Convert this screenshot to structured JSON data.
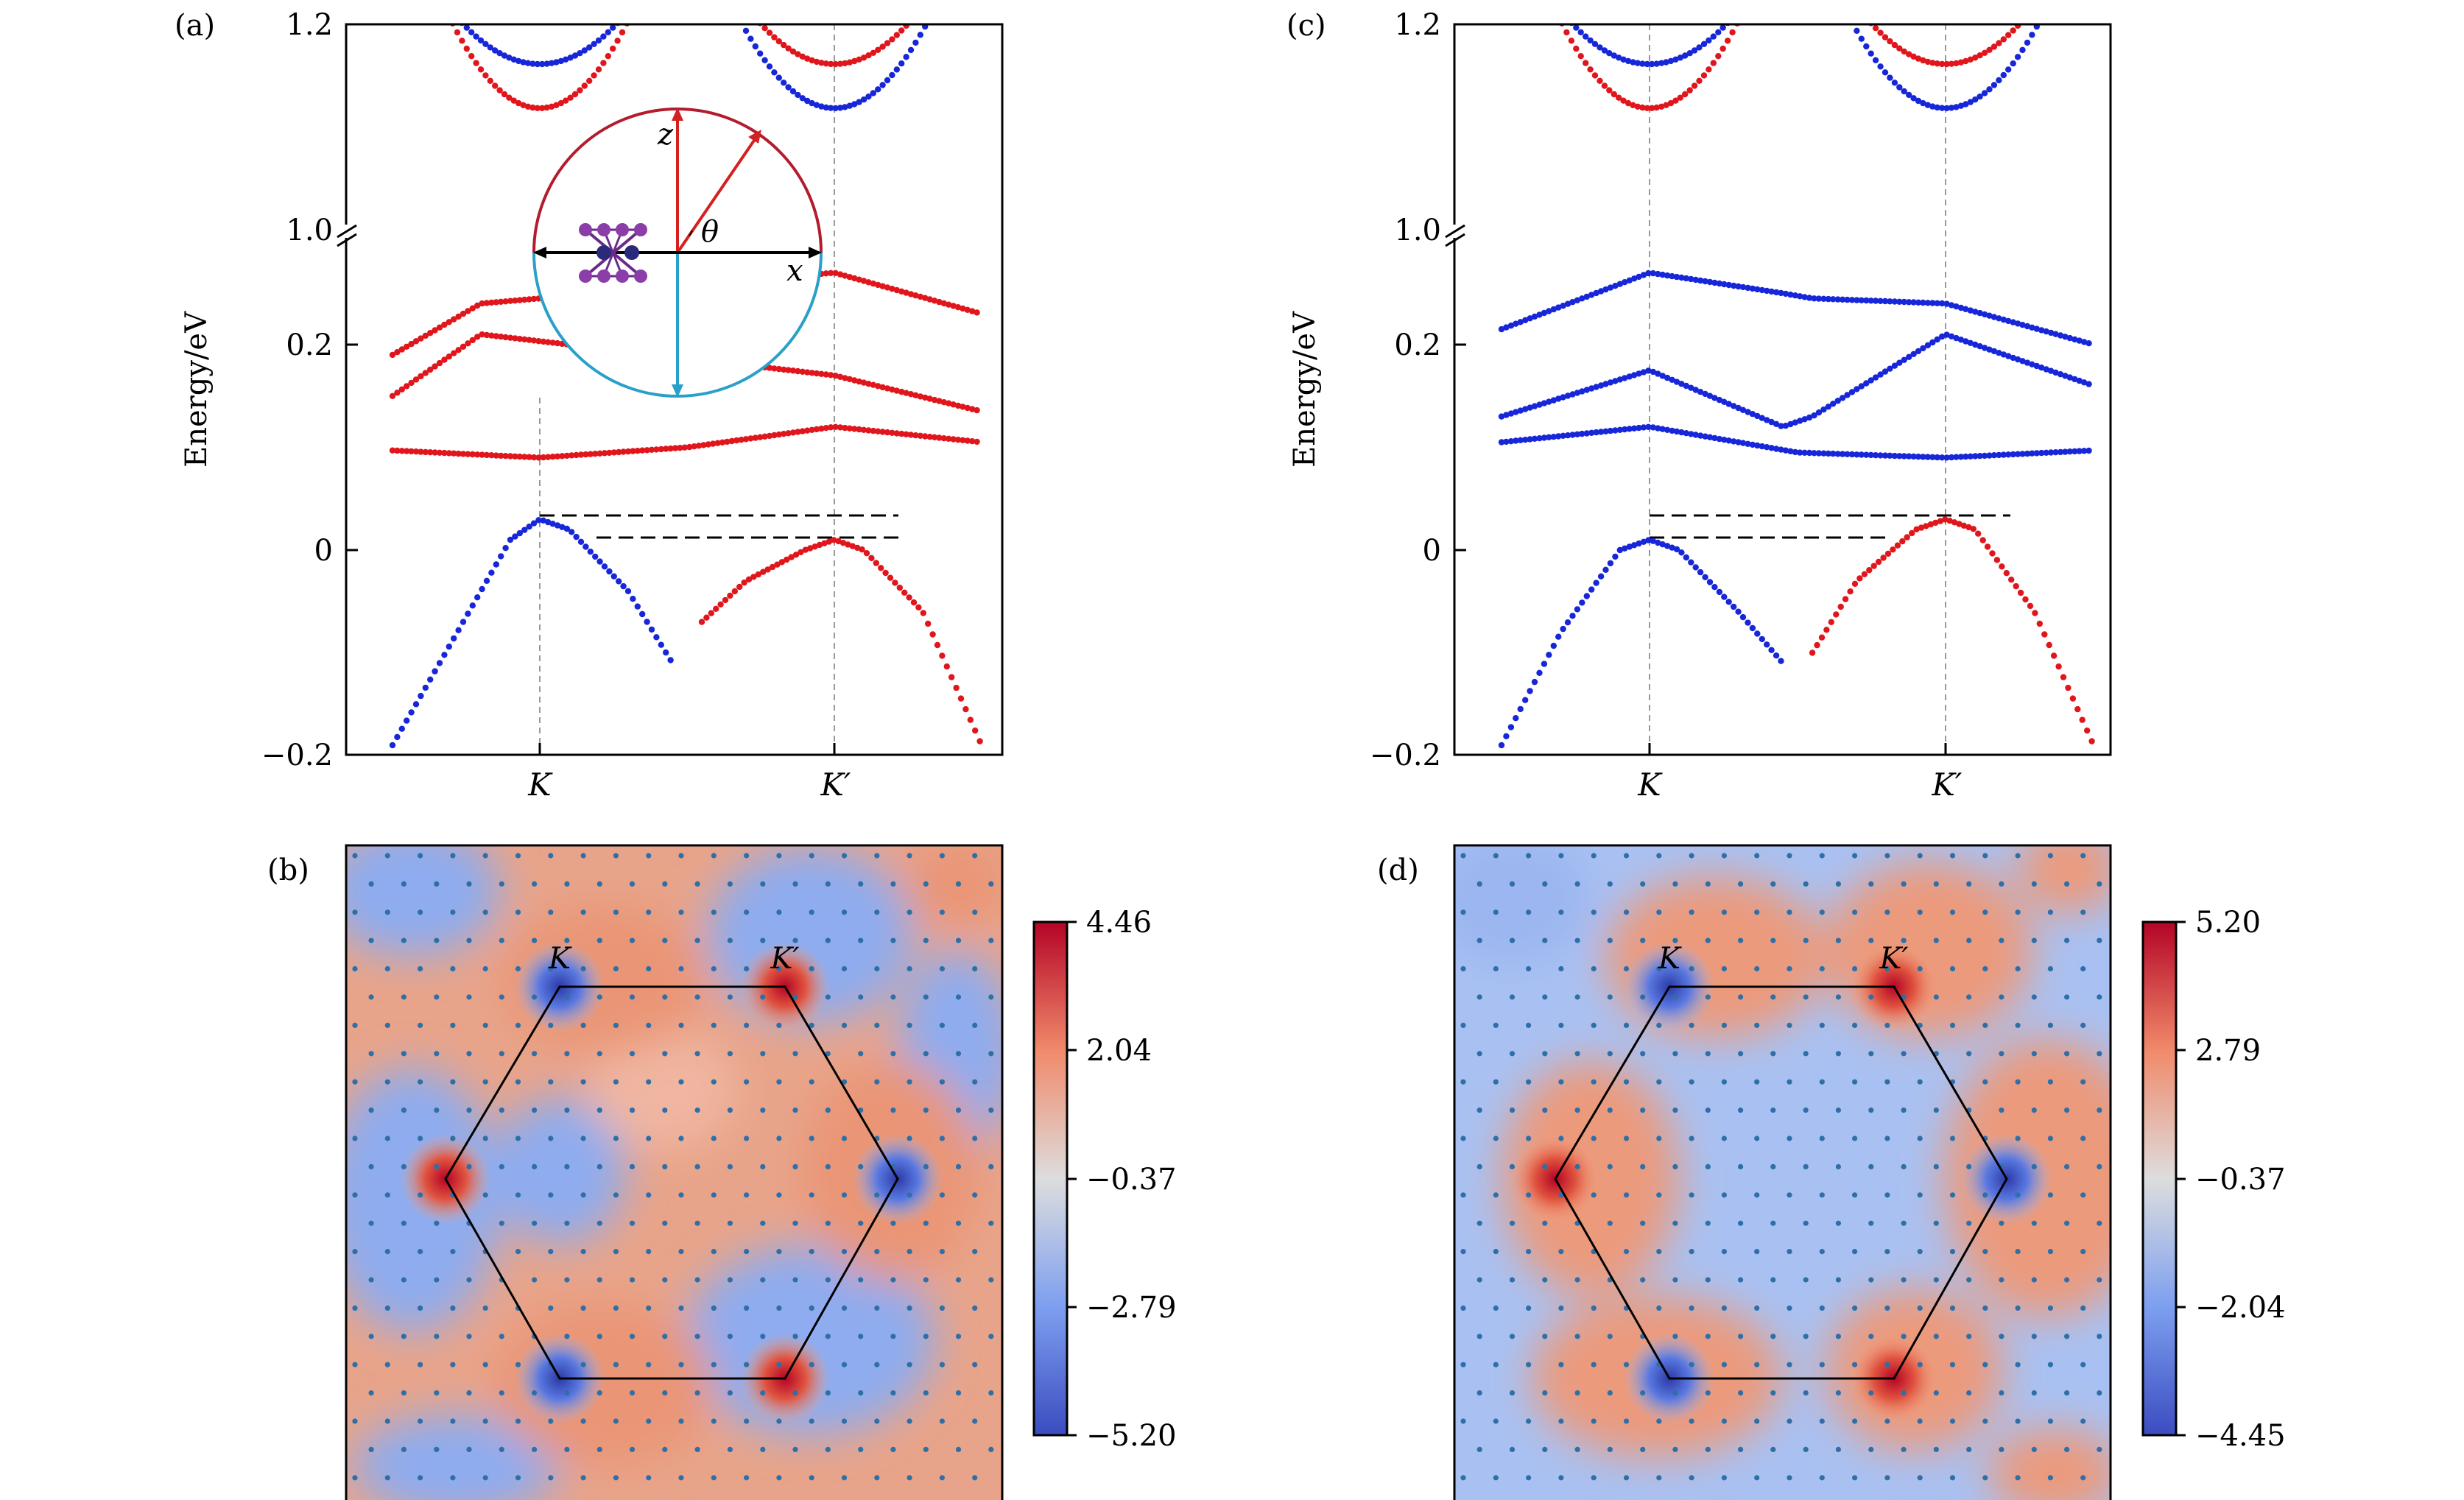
{
  "panels": {
    "a": "(a)",
    "b": "(b)",
    "c": "(c)",
    "d": "(d)"
  },
  "band_axes": {
    "ylabel": "Energy/eV",
    "upper_ticks": [
      "1.2",
      "1.0"
    ],
    "lower_ticks": [
      "0.2",
      "0",
      "−0.2"
    ],
    "xticks": [
      "K",
      "K′"
    ]
  },
  "inset": {
    "z": "z",
    "x": "x",
    "theta": "θ"
  },
  "map_labels": {
    "K": "K",
    "Kp": "K′"
  },
  "colorbar_b": [
    "4.46",
    "2.04",
    "−0.37",
    "−2.79",
    "−5.20"
  ],
  "colorbar_d": [
    "5.20",
    "2.79",
    "−0.37",
    "−2.04",
    "−4.45"
  ],
  "colors": {
    "spin_up": "#e0161c",
    "spin_down": "#1726d9",
    "berry_pos": "#b40426",
    "berry_neg": "#3b4cc0"
  },
  "chart_data": [
    {
      "panel": "(a)",
      "type": "scatter",
      "ylabel": "Energy/eV",
      "x_ticks": [
        "K",
        "K′"
      ],
      "y_ticks": [
        "−0.2",
        "0",
        "0.2",
        "1.0",
        "1.2"
      ],
      "series": [
        {
          "color": "red",
          "band": "valence near K′",
          "x": [
            0.55,
            0.7,
            0.9,
            1.0,
            1.1,
            1.3,
            1.5
          ],
          "y": [
            -0.07,
            -0.03,
            0.0,
            0.01,
            0.0,
            -0.06,
            -0.19
          ]
        },
        {
          "color": "blue",
          "band": "valence near K",
          "x": [
            -0.5,
            -0.3,
            -0.1,
            0.0,
            0.1,
            0.3,
            0.45
          ],
          "y": [
            -0.19,
            -0.09,
            0.01,
            0.03,
            0.02,
            -0.04,
            -0.11
          ]
        },
        {
          "color": "red",
          "band": "conduction 1",
          "x": [
            -0.5,
            0.0,
            0.5,
            1.0,
            1.5
          ],
          "y": [
            0.097,
            0.09,
            0.1,
            0.12,
            0.105
          ]
        },
        {
          "color": "red",
          "band": "conduction 2",
          "x": [
            -0.5,
            -0.2,
            1.0,
            1.5
          ],
          "y": [
            0.15,
            0.21,
            0.17,
            0.135
          ]
        },
        {
          "color": "red",
          "band": "conduction 3",
          "x": [
            -0.5,
            -0.2,
            1.0,
            1.5
          ],
          "y": [
            0.19,
            0.24,
            0.27,
            0.23
          ]
        }
      ]
    },
    {
      "panel": "(c)",
      "type": "scatter",
      "ylabel": "Energy/eV",
      "x_ticks": [
        "K",
        "K′"
      ],
      "y_ticks": [
        "−0.2",
        "0",
        "0.2",
        "1.0",
        "1.2"
      ],
      "series": [
        {
          "color": "blue",
          "band": "valence near K",
          "x": [
            -0.5,
            -0.3,
            -0.1,
            0.0,
            0.1,
            0.3,
            0.45
          ],
          "y": [
            -0.19,
            -0.08,
            0.0,
            0.01,
            0.0,
            -0.06,
            -0.11
          ]
        },
        {
          "color": "red",
          "band": "valence near K′",
          "x": [
            0.55,
            0.7,
            0.9,
            1.0,
            1.1,
            1.3,
            1.5
          ],
          "y": [
            -0.1,
            -0.03,
            0.02,
            0.03,
            0.02,
            -0.06,
            -0.19
          ]
        },
        {
          "color": "blue",
          "band": "conduction 1",
          "x": [
            -0.5,
            0.0,
            0.5,
            1.0,
            1.5
          ],
          "y": [
            0.105,
            0.12,
            0.095,
            0.09,
            0.097
          ]
        },
        {
          "color": "blue",
          "band": "conduction 2",
          "x": [
            -0.5,
            0.0,
            0.45,
            0.55,
            1.0,
            1.5
          ],
          "y": [
            0.13,
            0.175,
            0.12,
            0.13,
            0.21,
            0.16
          ]
        },
        {
          "color": "blue",
          "band": "conduction 3",
          "x": [
            -0.5,
            0.0,
            0.45,
            0.55,
            1.0,
            1.5
          ],
          "y": [
            0.215,
            0.27,
            0.25,
            0.245,
            0.24,
            0.2
          ]
        }
      ]
    },
    {
      "panel": "(b)",
      "type": "heatmap",
      "colorbar_ticks": [
        4.46,
        2.04,
        -0.37,
        -2.79,
        -5.2
      ],
      "extrema": [
        {
          "label": "K",
          "sign": "negative"
        },
        {
          "label": "K′",
          "sign": "positive"
        }
      ]
    },
    {
      "panel": "(d)",
      "type": "heatmap",
      "colorbar_ticks": [
        5.2,
        2.79,
        -0.37,
        -2.04,
        -4.45
      ],
      "extrema": [
        {
          "label": "K",
          "sign": "negative"
        },
        {
          "label": "K′",
          "sign": "positive"
        }
      ]
    }
  ]
}
